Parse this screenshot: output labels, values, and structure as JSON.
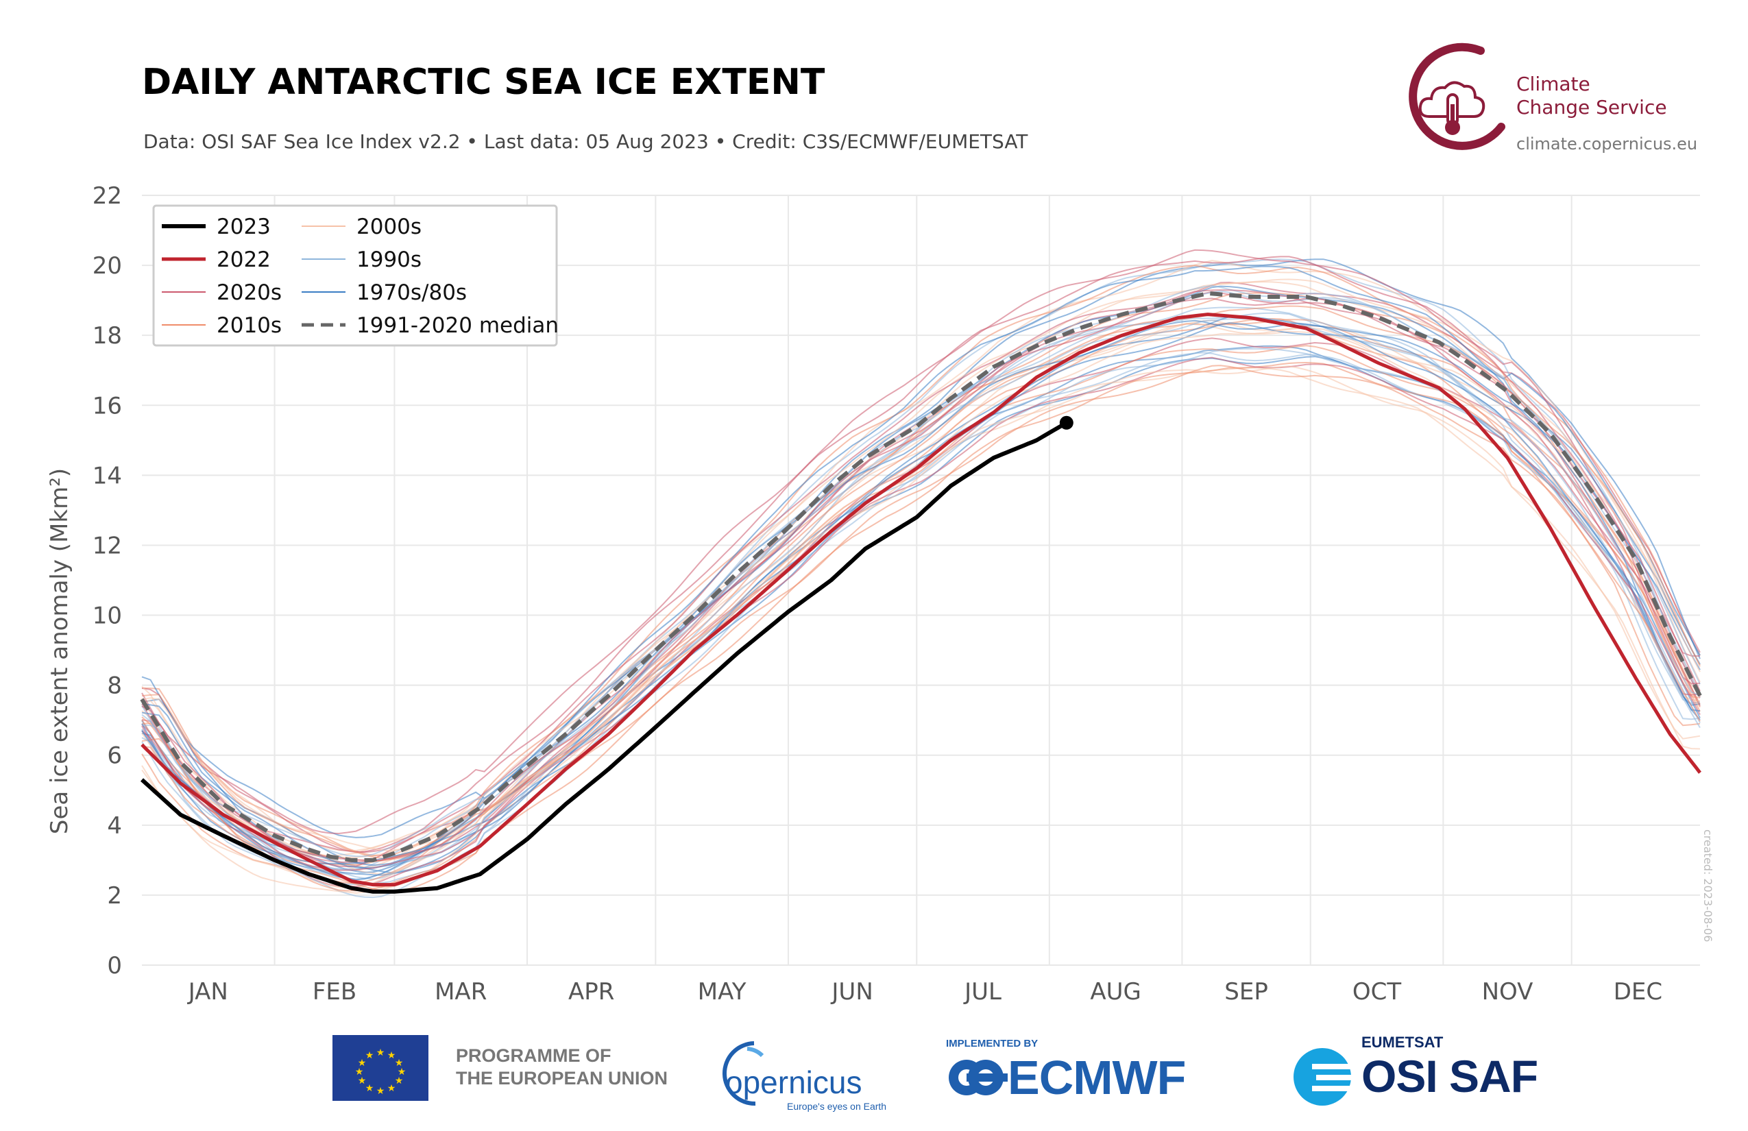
{
  "header": {
    "title": "DAILY ANTARCTIC SEA ICE EXTENT",
    "subtitle": "Data: OSI SAF Sea Ice Index v2.2 • Last data: 05 Aug 2023 • Credit: C3S/ECMWF/EUMETSAT"
  },
  "brand": {
    "line1": "Climate",
    "line2": "Change Service",
    "url": "climate.copernicus.eu"
  },
  "footer": {
    "eu_line1": "PROGRAMME OF",
    "eu_line2": "THE EUROPEAN UNION",
    "copernicus": "opernicus",
    "copernicus_tagline": "Europe's eyes on Earth",
    "ecmwf_implemented": "IMPLEMENTED BY",
    "ecmwf": "ECMWF",
    "eumetsat": "EUMETSAT",
    "osisaf": "OSI SAF",
    "created": "created: 2023-08-06"
  },
  "colors": {
    "y2023": "#000000",
    "y2022": "#c0242e",
    "s2020s": "#cc5a6e",
    "s2010s": "#ef8c6a",
    "s2000s": "#f6c2a8",
    "s1990s": "#8fb6dc",
    "s1970s80s": "#3b7dc4",
    "median": "#666666",
    "grid": "#e8e8e8"
  },
  "chart_data": {
    "type": "line",
    "title": "DAILY ANTARCTIC SEA ICE EXTENT",
    "xlabel": "",
    "ylabel": "Sea ice extent anomaly (Mkm²)",
    "ylim": [
      0,
      22
    ],
    "yticks": [
      "0",
      "2",
      "4",
      "6",
      "8",
      "10",
      "12",
      "14",
      "16",
      "18",
      "20",
      "22"
    ],
    "xlim": [
      1,
      365
    ],
    "months": [
      "JAN",
      "FEB",
      "MAR",
      "APR",
      "MAY",
      "JUN",
      "JUL",
      "AUG",
      "SEP",
      "OCT",
      "NOV",
      "DEC"
    ],
    "grid": true,
    "legend_position": "top-left",
    "legend": [
      "2023",
      "2022",
      "2020s",
      "2010s",
      "2000s",
      "1990s",
      "1970s/80s",
      "1991-2020 median"
    ],
    "x_unit": "day of year",
    "series": [
      {
        "name": "2023",
        "x": [
          1,
          10,
          20,
          32,
          40,
          45,
          50,
          55,
          60,
          70,
          80,
          91,
          100,
          110,
          121,
          130,
          140,
          152,
          162,
          170,
          182,
          190,
          200,
          210,
          217
        ],
        "y": [
          5.3,
          4.3,
          3.7,
          3.0,
          2.6,
          2.4,
          2.2,
          2.1,
          2.1,
          2.2,
          2.6,
          3.6,
          4.6,
          5.6,
          6.8,
          7.8,
          8.9,
          10.1,
          11.0,
          11.9,
          12.8,
          13.7,
          14.5,
          15.0,
          15.5
        ]
      },
      {
        "name": "2022",
        "x": [
          1,
          10,
          20,
          32,
          40,
          45,
          50,
          55,
          60,
          70,
          80,
          91,
          100,
          110,
          121,
          130,
          140,
          152,
          162,
          170,
          182,
          190,
          200,
          210,
          220,
          230,
          243,
          250,
          260,
          273,
          280,
          290,
          304,
          310,
          320,
          330,
          340,
          350,
          358,
          365
        ],
        "y": [
          6.3,
          5.2,
          4.3,
          3.5,
          3.0,
          2.7,
          2.4,
          2.3,
          2.3,
          2.7,
          3.4,
          4.6,
          5.6,
          6.6,
          7.9,
          9.0,
          10.0,
          11.3,
          12.4,
          13.2,
          14.2,
          15.0,
          15.8,
          16.8,
          17.5,
          18.0,
          18.5,
          18.6,
          18.5,
          18.2,
          17.8,
          17.2,
          16.5,
          15.9,
          14.5,
          12.5,
          10.3,
          8.2,
          6.6,
          5.5
        ]
      },
      {
        "name": "1991-2020 median",
        "x": [
          1,
          10,
          20,
          32,
          40,
          45,
          50,
          55,
          60,
          70,
          80,
          91,
          100,
          110,
          121,
          130,
          140,
          152,
          162,
          170,
          182,
          190,
          200,
          210,
          220,
          230,
          243,
          250,
          260,
          273,
          280,
          290,
          304,
          310,
          320,
          330,
          340,
          350,
          358,
          365
        ],
        "y": [
          7.6,
          5.8,
          4.6,
          3.7,
          3.3,
          3.1,
          3.0,
          3.0,
          3.2,
          3.7,
          4.5,
          5.7,
          6.6,
          7.7,
          9.0,
          10.0,
          11.2,
          12.5,
          13.7,
          14.5,
          15.4,
          16.2,
          17.1,
          17.7,
          18.2,
          18.6,
          19.0,
          19.2,
          19.1,
          19.1,
          18.9,
          18.5,
          17.8,
          17.3,
          16.4,
          15.2,
          13.5,
          11.6,
          9.4,
          7.7
        ]
      }
    ]
  }
}
